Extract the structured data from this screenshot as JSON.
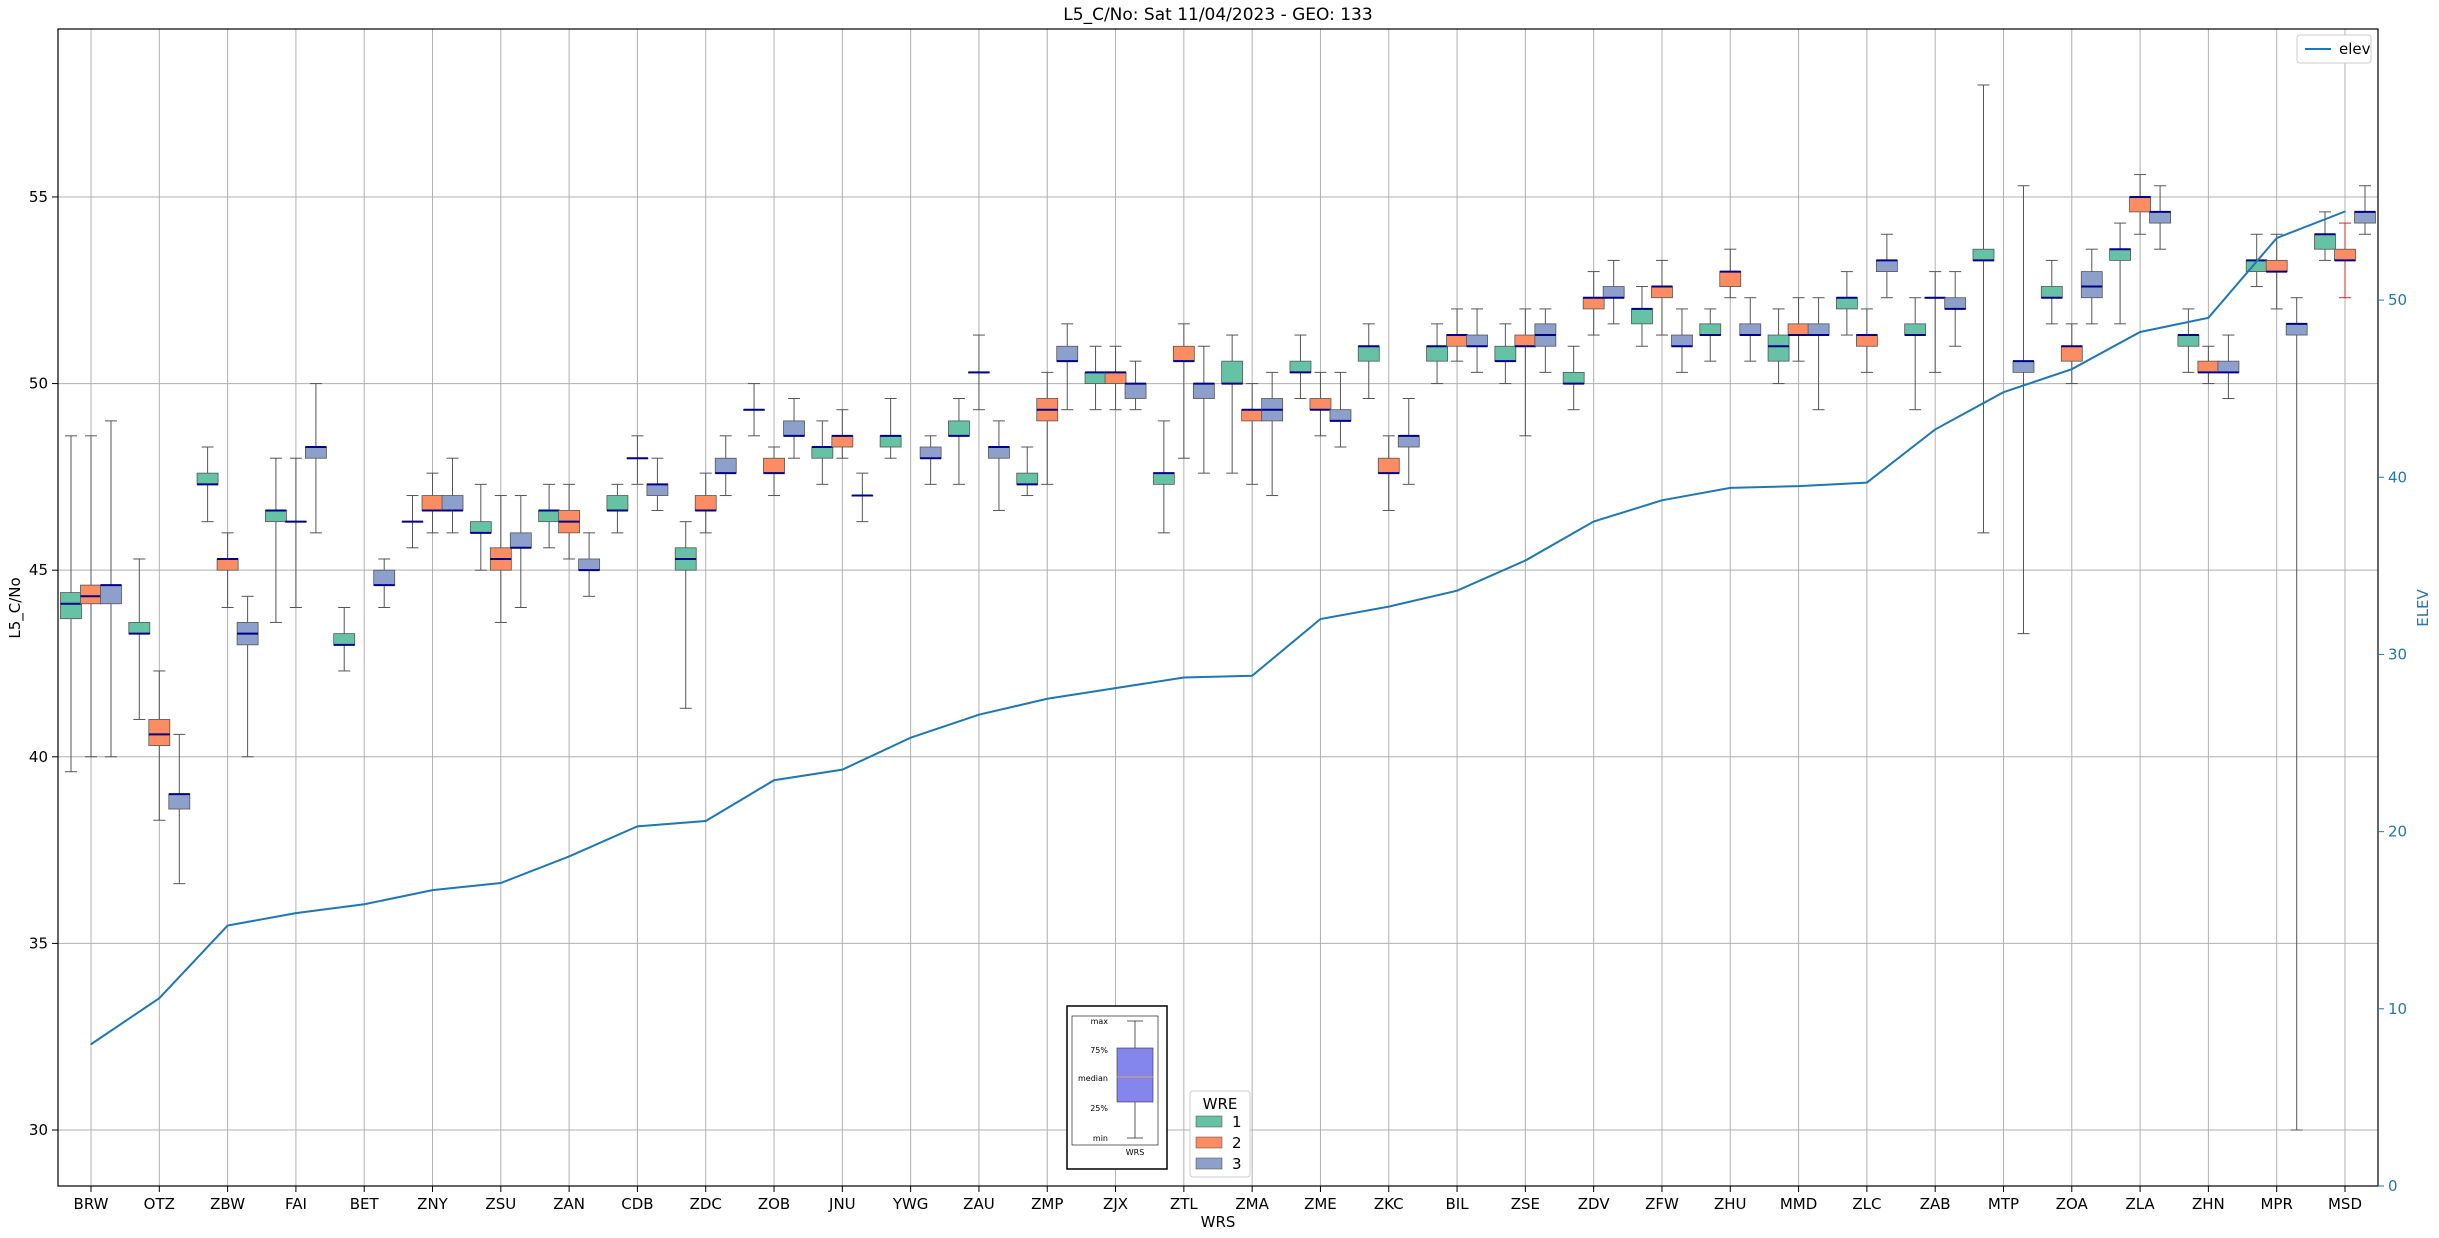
{
  "chart_data": {
    "type": "box",
    "title": "L5_C/No: Sat 11/04/2023 - GEO: 133",
    "xlabel": "WRS",
    "ylabel": "L5_C/No",
    "y2label": "ELEV",
    "ylim": [
      28.5,
      59.5
    ],
    "y2lim": [
      0,
      65.3
    ],
    "yticks": [
      30,
      35,
      40,
      45,
      50,
      55
    ],
    "y2ticks": [
      0,
      10,
      20,
      30,
      40,
      50
    ],
    "grid": true,
    "categories": [
      "BRW",
      "OTZ",
      "ZBW",
      "FAI",
      "BET",
      "ZNY",
      "ZSU",
      "ZAN",
      "CDB",
      "ZDC",
      "ZOB",
      "JNU",
      "YWG",
      "ZAU",
      "ZMP",
      "ZJX",
      "ZTL",
      "ZMA",
      "ZME",
      "ZKC",
      "BIL",
      "ZSE",
      "ZDV",
      "ZFW",
      "ZHU",
      "MMD",
      "ZLC",
      "ZAB",
      "MTP",
      "ZOA",
      "ZLA",
      "ZHN",
      "MPR",
      "MSD"
    ],
    "wre_legend": {
      "title": "WRE",
      "entries": [
        {
          "name": "1",
          "color": "#66c2a5"
        },
        {
          "name": "2",
          "color": "#fc8d62"
        },
        {
          "name": "3",
          "color": "#8da0cb"
        }
      ]
    },
    "line_series": {
      "name": "elev",
      "color": "#1f77b4",
      "values": [
        8.0,
        10.6,
        14.7,
        15.4,
        15.9,
        16.7,
        17.1,
        18.6,
        20.3,
        20.6,
        22.9,
        23.5,
        25.3,
        26.6,
        27.5,
        28.1,
        28.7,
        28.8,
        32.0,
        32.7,
        33.6,
        35.3,
        37.5,
        38.7,
        39.4,
        39.5,
        39.7,
        42.7,
        44.8,
        46.1,
        48.2,
        49.0,
        53.5,
        55.0
      ]
    },
    "boxes": [
      {
        "station": "BRW",
        "wre": 1,
        "min": 39.6,
        "q1": 43.7,
        "median": 44.1,
        "q3": 44.4,
        "max": 48.6
      },
      {
        "station": "BRW",
        "wre": 2,
        "min": 40.0,
        "q1": 44.1,
        "median": 44.3,
        "q3": 44.6,
        "max": 48.6
      },
      {
        "station": "BRW",
        "wre": 3,
        "min": 40.0,
        "q1": 44.1,
        "median": 44.6,
        "q3": 44.6,
        "max": 49.0
      },
      {
        "station": "OTZ",
        "wre": 1,
        "min": 41.0,
        "q1": 43.3,
        "median": 43.3,
        "q3": 43.6,
        "max": 45.3
      },
      {
        "station": "OTZ",
        "wre": 2,
        "min": 38.3,
        "q1": 40.3,
        "median": 40.6,
        "q3": 41.0,
        "max": 42.3
      },
      {
        "station": "OTZ",
        "wre": 3,
        "min": 36.6,
        "q1": 38.6,
        "median": 39.0,
        "q3": 39.0,
        "max": 40.6
      },
      {
        "station": "ZBW",
        "wre": 1,
        "min": 46.3,
        "q1": 47.3,
        "median": 47.3,
        "q3": 47.6,
        "max": 48.3
      },
      {
        "station": "ZBW",
        "wre": 2,
        "min": 44.0,
        "q1": 45.0,
        "median": 45.3,
        "q3": 45.3,
        "max": 46.0
      },
      {
        "station": "ZBW",
        "wre": 3,
        "min": 40.0,
        "q1": 43.0,
        "median": 43.3,
        "q3": 43.6,
        "max": 44.3
      },
      {
        "station": "FAI",
        "wre": 1,
        "min": 43.6,
        "q1": 46.3,
        "median": 46.6,
        "q3": 46.6,
        "max": 48.0
      },
      {
        "station": "FAI",
        "wre": 2,
        "min": 44.0,
        "q1": 46.3,
        "median": 46.3,
        "q3": 46.3,
        "max": 48.0
      },
      {
        "station": "FAI",
        "wre": 3,
        "min": 46.0,
        "q1": 48.0,
        "median": 48.3,
        "q3": 48.3,
        "max": 50.0
      },
      {
        "station": "BET",
        "wre": 1,
        "min": 42.3,
        "q1": 43.0,
        "median": 43.0,
        "q3": 43.3,
        "max": 44.0
      },
      {
        "station": "BET",
        "wre": 3,
        "min": 44.0,
        "q1": 44.6,
        "median": 44.6,
        "q3": 45.0,
        "max": 45.3
      },
      {
        "station": "ZNY",
        "wre": 1,
        "min": 45.6,
        "q1": 46.3,
        "median": 46.3,
        "q3": 46.3,
        "max": 47.0
      },
      {
        "station": "ZNY",
        "wre": 2,
        "min": 46.0,
        "q1": 46.6,
        "median": 46.6,
        "q3": 47.0,
        "max": 47.6
      },
      {
        "station": "ZNY",
        "wre": 3,
        "min": 46.0,
        "q1": 46.6,
        "median": 46.6,
        "q3": 47.0,
        "max": 48.0
      },
      {
        "station": "ZSU",
        "wre": 1,
        "min": 45.0,
        "q1": 46.0,
        "median": 46.0,
        "q3": 46.3,
        "max": 47.3
      },
      {
        "station": "ZSU",
        "wre": 2,
        "min": 43.6,
        "q1": 45.0,
        "median": 45.3,
        "q3": 45.6,
        "max": 47.0
      },
      {
        "station": "ZSU",
        "wre": 3,
        "min": 44.0,
        "q1": 45.6,
        "median": 45.6,
        "q3": 46.0,
        "max": 47.0
      },
      {
        "station": "ZAN",
        "wre": 1,
        "min": 45.6,
        "q1": 46.3,
        "median": 46.6,
        "q3": 46.6,
        "max": 47.3
      },
      {
        "station": "ZAN",
        "wre": 2,
        "min": 45.3,
        "q1": 46.0,
        "median": 46.3,
        "q3": 46.6,
        "max": 47.3
      },
      {
        "station": "ZAN",
        "wre": 3,
        "min": 44.3,
        "q1": 45.0,
        "median": 45.0,
        "q3": 45.3,
        "max": 46.0
      },
      {
        "station": "CDB",
        "wre": 1,
        "min": 46.0,
        "q1": 46.6,
        "median": 46.6,
        "q3": 47.0,
        "max": 47.3
      },
      {
        "station": "CDB",
        "wre": 2,
        "min": 47.3,
        "q1": 48.0,
        "median": 48.0,
        "q3": 48.0,
        "max": 48.6
      },
      {
        "station": "CDB",
        "wre": 3,
        "min": 46.6,
        "q1": 47.0,
        "median": 47.3,
        "q3": 47.3,
        "max": 48.0
      },
      {
        "station": "ZDC",
        "wre": 1,
        "min": 41.3,
        "q1": 45.0,
        "median": 45.3,
        "q3": 45.6,
        "max": 46.3
      },
      {
        "station": "ZDC",
        "wre": 2,
        "min": 46.0,
        "q1": 46.6,
        "median": 46.6,
        "q3": 47.0,
        "max": 47.6
      },
      {
        "station": "ZDC",
        "wre": 3,
        "min": 47.0,
        "q1": 47.6,
        "median": 47.6,
        "q3": 48.0,
        "max": 48.6
      },
      {
        "station": "ZOB",
        "wre": 1,
        "min": 48.6,
        "q1": 49.3,
        "median": 49.3,
        "q3": 49.3,
        "max": 50.0
      },
      {
        "station": "ZOB",
        "wre": 2,
        "min": 47.0,
        "q1": 47.6,
        "median": 47.6,
        "q3": 48.0,
        "max": 48.3
      },
      {
        "station": "ZOB",
        "wre": 3,
        "min": 48.0,
        "q1": 48.6,
        "median": 48.6,
        "q3": 49.0,
        "max": 49.6
      },
      {
        "station": "JNU",
        "wre": 1,
        "min": 47.3,
        "q1": 48.0,
        "median": 48.3,
        "q3": 48.3,
        "max": 49.0
      },
      {
        "station": "JNU",
        "wre": 2,
        "min": 48.0,
        "q1": 48.3,
        "median": 48.6,
        "q3": 48.6,
        "max": 49.3
      },
      {
        "station": "JNU",
        "wre": 3,
        "min": 46.3,
        "q1": 47.0,
        "median": 47.0,
        "q3": 47.0,
        "max": 47.6
      },
      {
        "station": "YWG",
        "wre": 1,
        "min": 48.0,
        "q1": 48.3,
        "median": 48.6,
        "q3": 48.6,
        "max": 49.6
      },
      {
        "station": "YWG",
        "wre": 3,
        "min": 47.3,
        "q1": 48.0,
        "median": 48.0,
        "q3": 48.3,
        "max": 48.6
      },
      {
        "station": "ZAU",
        "wre": 1,
        "min": 47.3,
        "q1": 48.6,
        "median": 48.6,
        "q3": 49.0,
        "max": 49.6
      },
      {
        "station": "ZAU",
        "wre": 2,
        "min": 49.3,
        "q1": 50.3,
        "median": 50.3,
        "q3": 50.3,
        "max": 51.3
      },
      {
        "station": "ZAU",
        "wre": 3,
        "min": 46.6,
        "q1": 48.0,
        "median": 48.3,
        "q3": 48.3,
        "max": 49.0
      },
      {
        "station": "ZMP",
        "wre": 1,
        "min": 47.0,
        "q1": 47.3,
        "median": 47.3,
        "q3": 47.6,
        "max": 48.3
      },
      {
        "station": "ZMP",
        "wre": 2,
        "min": 47.3,
        "q1": 49.0,
        "median": 49.3,
        "q3": 49.6,
        "max": 50.3
      },
      {
        "station": "ZMP",
        "wre": 3,
        "min": 49.3,
        "q1": 50.6,
        "median": 50.6,
        "q3": 51.0,
        "max": 51.6
      },
      {
        "station": "ZJX",
        "wre": 1,
        "min": 49.3,
        "q1": 50.0,
        "median": 50.3,
        "q3": 50.3,
        "max": 51.0
      },
      {
        "station": "ZJX",
        "wre": 2,
        "min": 49.3,
        "q1": 50.0,
        "median": 50.3,
        "q3": 50.3,
        "max": 51.0
      },
      {
        "station": "ZJX",
        "wre": 3,
        "min": 49.3,
        "q1": 49.6,
        "median": 50.0,
        "q3": 50.0,
        "max": 50.6
      },
      {
        "station": "ZTL",
        "wre": 1,
        "min": 46.0,
        "q1": 47.3,
        "median": 47.6,
        "q3": 47.6,
        "max": 49.0
      },
      {
        "station": "ZTL",
        "wre": 2,
        "min": 48.0,
        "q1": 50.6,
        "median": 50.6,
        "q3": 51.0,
        "max": 51.6
      },
      {
        "station": "ZTL",
        "wre": 3,
        "min": 47.6,
        "q1": 49.6,
        "median": 50.0,
        "q3": 50.0,
        "max": 51.0
      },
      {
        "station": "ZMA",
        "wre": 1,
        "min": 47.6,
        "q1": 50.0,
        "median": 50.0,
        "q3": 50.6,
        "max": 51.3
      },
      {
        "station": "ZMA",
        "wre": 2,
        "min": 47.3,
        "q1": 49.0,
        "median": 49.3,
        "q3": 49.3,
        "max": 50.0
      },
      {
        "station": "ZMA",
        "wre": 3,
        "min": 47.0,
        "q1": 49.0,
        "median": 49.3,
        "q3": 49.6,
        "max": 50.3
      },
      {
        "station": "ZME",
        "wre": 1,
        "min": 49.6,
        "q1": 50.3,
        "median": 50.3,
        "q3": 50.6,
        "max": 51.3
      },
      {
        "station": "ZME",
        "wre": 2,
        "min": 48.6,
        "q1": 49.3,
        "median": 49.3,
        "q3": 49.6,
        "max": 50.3
      },
      {
        "station": "ZME",
        "wre": 3,
        "min": 48.3,
        "q1": 49.0,
        "median": 49.0,
        "q3": 49.3,
        "max": 50.3
      },
      {
        "station": "ZKC",
        "wre": 1,
        "min": 49.6,
        "q1": 50.6,
        "median": 51.0,
        "q3": 51.0,
        "max": 51.6
      },
      {
        "station": "ZKC",
        "wre": 2,
        "min": 46.6,
        "q1": 47.6,
        "median": 47.6,
        "q3": 48.0,
        "max": 48.6
      },
      {
        "station": "ZKC",
        "wre": 3,
        "min": 47.3,
        "q1": 48.3,
        "median": 48.6,
        "q3": 48.6,
        "max": 49.6
      },
      {
        "station": "BIL",
        "wre": 1,
        "min": 50.0,
        "q1": 50.6,
        "median": 51.0,
        "q3": 51.0,
        "max": 51.6
      },
      {
        "station": "BIL",
        "wre": 2,
        "min": 50.6,
        "q1": 51.0,
        "median": 51.3,
        "q3": 51.3,
        "max": 52.0
      },
      {
        "station": "BIL",
        "wre": 3,
        "min": 50.3,
        "q1": 51.0,
        "median": 51.0,
        "q3": 51.3,
        "max": 52.0
      },
      {
        "station": "ZSE",
        "wre": 1,
        "min": 50.0,
        "q1": 50.6,
        "median": 50.6,
        "q3": 51.0,
        "max": 51.6
      },
      {
        "station": "ZSE",
        "wre": 2,
        "min": 48.6,
        "q1": 51.0,
        "median": 51.0,
        "q3": 51.3,
        "max": 52.0
      },
      {
        "station": "ZSE",
        "wre": 3,
        "min": 50.3,
        "q1": 51.0,
        "median": 51.3,
        "q3": 51.6,
        "max": 52.0
      },
      {
        "station": "ZDV",
        "wre": 1,
        "min": 49.3,
        "q1": 50.0,
        "median": 50.0,
        "q3": 50.3,
        "max": 51.0
      },
      {
        "station": "ZDV",
        "wre": 2,
        "min": 51.3,
        "q1": 52.0,
        "median": 52.3,
        "q3": 52.3,
        "max": 53.0
      },
      {
        "station": "ZDV",
        "wre": 3,
        "min": 51.6,
        "q1": 52.3,
        "median": 52.3,
        "q3": 52.6,
        "max": 53.3
      },
      {
        "station": "ZFW",
        "wre": 1,
        "min": 51.0,
        "q1": 51.6,
        "median": 52.0,
        "q3": 52.0,
        "max": 52.6
      },
      {
        "station": "ZFW",
        "wre": 2,
        "min": 51.3,
        "q1": 52.3,
        "median": 52.6,
        "q3": 52.6,
        "max": 53.3
      },
      {
        "station": "ZFW",
        "wre": 3,
        "min": 50.3,
        "q1": 51.0,
        "median": 51.0,
        "q3": 51.3,
        "max": 52.0
      },
      {
        "station": "ZHU",
        "wre": 1,
        "min": 50.6,
        "q1": 51.3,
        "median": 51.3,
        "q3": 51.6,
        "max": 52.0
      },
      {
        "station": "ZHU",
        "wre": 2,
        "min": 52.3,
        "q1": 52.6,
        "median": 53.0,
        "q3": 53.0,
        "max": 53.6
      },
      {
        "station": "ZHU",
        "wre": 3,
        "min": 50.6,
        "q1": 51.3,
        "median": 51.3,
        "q3": 51.6,
        "max": 52.3
      },
      {
        "station": "MMD",
        "wre": 1,
        "min": 50.0,
        "q1": 50.6,
        "median": 51.0,
        "q3": 51.3,
        "max": 52.0
      },
      {
        "station": "MMD",
        "wre": 2,
        "min": 50.6,
        "q1": 51.3,
        "median": 51.3,
        "q3": 51.6,
        "max": 52.3
      },
      {
        "station": "MMD",
        "wre": 3,
        "min": 49.3,
        "q1": 51.3,
        "median": 51.3,
        "q3": 51.6,
        "max": 52.3
      },
      {
        "station": "ZLC",
        "wre": 1,
        "min": 51.3,
        "q1": 52.0,
        "median": 52.3,
        "q3": 52.3,
        "max": 53.0
      },
      {
        "station": "ZLC",
        "wre": 2,
        "min": 50.3,
        "q1": 51.0,
        "median": 51.3,
        "q3": 51.3,
        "max": 52.0
      },
      {
        "station": "ZLC",
        "wre": 3,
        "min": 52.3,
        "q1": 53.0,
        "median": 53.3,
        "q3": 53.3,
        "max": 54.0
      },
      {
        "station": "ZAB",
        "wre": 1,
        "min": 49.3,
        "q1": 51.3,
        "median": 51.3,
        "q3": 51.6,
        "max": 52.3
      },
      {
        "station": "ZAB",
        "wre": 2,
        "min": 50.3,
        "q1": 52.3,
        "median": 52.3,
        "q3": 52.3,
        "max": 53.0
      },
      {
        "station": "ZAB",
        "wre": 3,
        "min": 51.0,
        "q1": 52.0,
        "median": 52.0,
        "q3": 52.3,
        "max": 53.0
      },
      {
        "station": "MTP",
        "wre": 1,
        "min": 46.0,
        "q1": 53.3,
        "median": 53.3,
        "q3": 53.6,
        "max": 58.0
      },
      {
        "station": "MTP",
        "wre": 3,
        "min": 43.3,
        "q1": 50.3,
        "median": 50.6,
        "q3": 50.6,
        "max": 55.3
      },
      {
        "station": "ZOA",
        "wre": 1,
        "min": 51.6,
        "q1": 52.3,
        "median": 52.3,
        "q3": 52.6,
        "max": 53.3
      },
      {
        "station": "ZOA",
        "wre": 2,
        "min": 50.0,
        "q1": 50.6,
        "median": 51.0,
        "q3": 51.0,
        "max": 51.6
      },
      {
        "station": "ZOA",
        "wre": 3,
        "min": 51.6,
        "q1": 52.3,
        "median": 52.6,
        "q3": 53.0,
        "max": 53.6
      },
      {
        "station": "ZLA",
        "wre": 1,
        "min": 51.6,
        "q1": 53.3,
        "median": 53.6,
        "q3": 53.6,
        "max": 54.3
      },
      {
        "station": "ZLA",
        "wre": 2,
        "min": 54.0,
        "q1": 54.6,
        "median": 55.0,
        "q3": 55.0,
        "max": 55.6
      },
      {
        "station": "ZLA",
        "wre": 3,
        "min": 53.6,
        "q1": 54.3,
        "median": 54.6,
        "q3": 54.6,
        "max": 55.3
      },
      {
        "station": "ZHN",
        "wre": 1,
        "min": 50.3,
        "q1": 51.0,
        "median": 51.3,
        "q3": 51.3,
        "max": 52.0
      },
      {
        "station": "ZHN",
        "wre": 2,
        "min": 50.0,
        "q1": 50.3,
        "median": 50.3,
        "q3": 50.6,
        "max": 51.0
      },
      {
        "station": "ZHN",
        "wre": 3,
        "min": 49.6,
        "q1": 50.3,
        "median": 50.3,
        "q3": 50.6,
        "max": 51.3
      },
      {
        "station": "MPR",
        "wre": 1,
        "min": 52.6,
        "q1": 53.0,
        "median": 53.3,
        "q3": 53.3,
        "max": 54.0
      },
      {
        "station": "MPR",
        "wre": 2,
        "min": 52.0,
        "q1": 53.0,
        "median": 53.0,
        "q3": 53.3,
        "max": 54.0
      },
      {
        "station": "MPR",
        "wre": 3,
        "min": 30.0,
        "q1": 51.3,
        "median": 51.6,
        "q3": 51.6,
        "max": 52.3
      },
      {
        "station": "MSD",
        "wre": 1,
        "min": 53.3,
        "q1": 53.6,
        "median": 54.0,
        "q3": 54.0,
        "max": 54.6
      },
      {
        "station": "MSD",
        "wre": 2,
        "min": 52.3,
        "q1": 53.3,
        "median": 53.3,
        "q3": 53.6,
        "max": 54.3
      },
      {
        "station": "MSD",
        "wre": 3,
        "min": 54.0,
        "q1": 54.3,
        "median": 54.6,
        "q3": 54.6,
        "max": 55.3
      }
    ],
    "box_key": {
      "labels": [
        "max",
        "75%",
        "median",
        "25%",
        "min"
      ],
      "xlabel": "WRS"
    }
  }
}
